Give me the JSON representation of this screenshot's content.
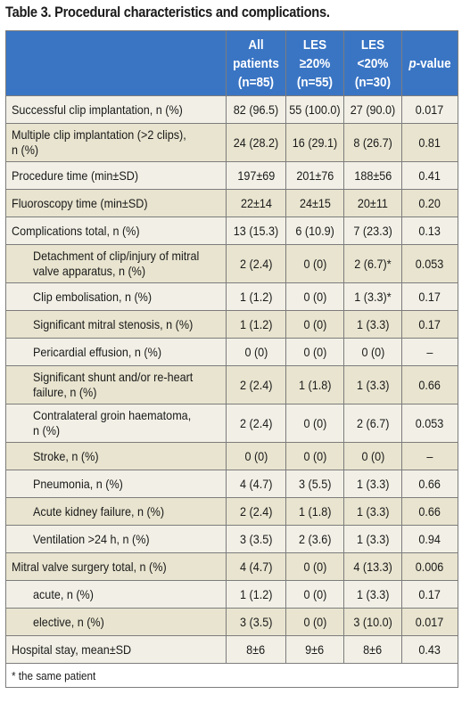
{
  "title": "Table 3. Procedural characteristics and complications.",
  "headers": {
    "all_line1": "All",
    "all_line2": "patients",
    "all_line3": "(n=85)",
    "les_hi_line1": "LES",
    "les_hi_line2": "≥20%",
    "les_hi_line3": "(n=55)",
    "les_lo_line1": "LES",
    "les_lo_line2": "<20%",
    "les_lo_line3": "(n=30)",
    "p_italic": "p",
    "p_rest": "-value"
  },
  "rows": [
    {
      "label": "Successful clip implantation, n (%)",
      "all": "82 (96.5)",
      "les_hi": "55 (100.0)",
      "les_lo": "27 (90.0)",
      "p": "0.017"
    },
    {
      "label_l1": "Multiple clip implantation (>2 clips),",
      "label_l2": "n (%)",
      "all": "24 (28.2)",
      "les_hi": "16 (29.1)",
      "les_lo": "8 (26.7)",
      "p": "0.81"
    },
    {
      "label": "Procedure time (min±SD)",
      "all": "197±69",
      "les_hi": "201±76",
      "les_lo": "188±56",
      "p": "0.41"
    },
    {
      "label": "Fluoroscopy time (min±SD)",
      "all": "22±14",
      "les_hi": "24±15",
      "les_lo": "20±11",
      "p": "0.20"
    },
    {
      "label": "Complications total, n (%)",
      "all": "13 (15.3)",
      "les_hi": "6 (10.9)",
      "les_lo": "7 (23.3)",
      "p": "0.13"
    },
    {
      "label_l1": "Detachment of clip/injury of mitral",
      "label_l2": "valve apparatus, n (%)",
      "all": "2 (2.4)",
      "les_hi": "0 (0)",
      "les_lo": "2 (6.7)*",
      "p": "0.053"
    },
    {
      "label": "Clip embolisation, n (%)",
      "all": "1 (1.2)",
      "les_hi": "0 (0)",
      "les_lo": "1 (3.3)*",
      "p": "0.17"
    },
    {
      "label": "Significant mitral stenosis, n (%)",
      "all": "1 (1.2)",
      "les_hi": "0 (0)",
      "les_lo": "1 (3.3)",
      "p": "0.17"
    },
    {
      "label": "Pericardial effusion, n (%)",
      "all": "0 (0)",
      "les_hi": "0 (0)",
      "les_lo": "0 (0)",
      "p": "–"
    },
    {
      "label_l1": "Significant shunt and/or re-heart",
      "label_l2": "failure, n (%)",
      "all": "2 (2.4)",
      "les_hi": "1 (1.8)",
      "les_lo": "1 (3.3)",
      "p": "0.66"
    },
    {
      "label_l1": "Contralateral groin haematoma,",
      "label_l2": "n (%)",
      "all": "2 (2.4)",
      "les_hi": "0 (0)",
      "les_lo": "2 (6.7)",
      "p": "0.053"
    },
    {
      "label": "Stroke, n (%)",
      "all": "0 (0)",
      "les_hi": "0 (0)",
      "les_lo": "0 (0)",
      "p": "–"
    },
    {
      "label": "Pneumonia, n (%)",
      "all": "4 (4.7)",
      "les_hi": "3 (5.5)",
      "les_lo": "1 (3.3)",
      "p": "0.66"
    },
    {
      "label": "Acute kidney failure, n (%)",
      "all": "2 (2.4)",
      "les_hi": "1 (1.8)",
      "les_lo": "1 (3.3)",
      "p": "0.66"
    },
    {
      "label": "Ventilation >24 h, n (%)",
      "all": "3 (3.5)",
      "les_hi": "2 (3.6)",
      "les_lo": "1 (3.3)",
      "p": "0.94"
    },
    {
      "label": "Mitral valve surgery total, n (%)",
      "all": "4 (4.7)",
      "les_hi": "0 (0)",
      "les_lo": "4 (13.3)",
      "p": "0.006"
    },
    {
      "label": "acute, n (%)",
      "all": "1 (1.2)",
      "les_hi": "0 (0)",
      "les_lo": "1 (3.3)",
      "p": "0.17"
    },
    {
      "label": "elective, n (%)",
      "all": "3 (3.5)",
      "les_hi": "0 (0)",
      "les_lo": "3 (10.0)",
      "p": "0.017"
    },
    {
      "label": "Hospital stay, mean±SD",
      "all": "8±6",
      "les_hi": "9±6",
      "les_lo": "8±6",
      "p": "0.43"
    }
  ],
  "footnote": "* the same patient",
  "colors": {
    "header_bg": "#3a75c4",
    "row_light": "#f2f0e6",
    "row_dark": "#e8e4cf"
  }
}
